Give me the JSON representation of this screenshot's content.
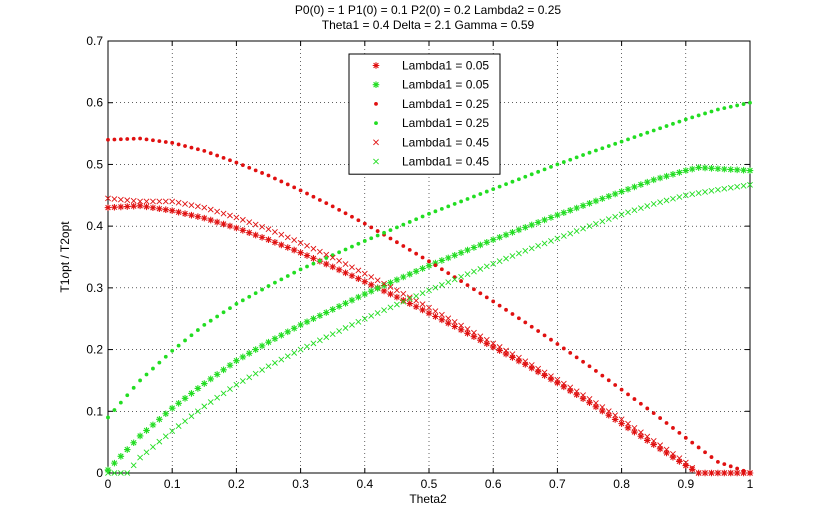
{
  "chart_data": {
    "type": "scatter",
    "title_lines": [
      "P0(0) = 1 P1(0) = 0.1 P2(0) = 0.2 Lambda2 = 0.25",
      "Theta1 = 0.4 Delta = 2.1 Gamma = 0.59"
    ],
    "xlabel": "Theta2",
    "ylabel": "T1opt / T2opt",
    "xlim": [
      0,
      1
    ],
    "ylim": [
      0,
      0.7
    ],
    "xticks": [
      0,
      0.1,
      0.2,
      0.3,
      0.4,
      0.5,
      0.6,
      0.7,
      0.8,
      0.9,
      1
    ],
    "xtick_labels": [
      "0",
      "0.1",
      "0.2",
      "0.3",
      "0.4",
      "0.5",
      "0.6",
      "0.7",
      "0.8",
      "0.9",
      "1"
    ],
    "yticks": [
      0,
      0.1,
      0.2,
      0.3,
      0.4,
      0.5,
      0.6,
      0.7
    ],
    "ytick_labels": [
      "0",
      "0.1",
      "0.2",
      "0.3",
      "0.4",
      "0.5",
      "0.6",
      "0.7"
    ],
    "grid": true,
    "legend_position": "top-center",
    "colors": {
      "red": "#e01010",
      "green": "#22dd22",
      "axis": "#000000",
      "grid": "#000000"
    },
    "series": [
      {
        "name": "Lambda1 = 0.05",
        "color": "#e01010",
        "marker": "asterisk",
        "x": [
          0,
          0.05,
          0.1,
          0.15,
          0.2,
          0.25,
          0.3,
          0.35,
          0.4,
          0.45,
          0.5,
          0.55,
          0.6,
          0.65,
          0.7,
          0.75,
          0.8,
          0.85,
          0.9,
          0.92,
          0.95,
          1
        ],
        "y": [
          0.43,
          0.433,
          0.425,
          0.413,
          0.397,
          0.378,
          0.357,
          0.334,
          0.31,
          0.285,
          0.259,
          0.232,
          0.204,
          0.176,
          0.146,
          0.114,
          0.08,
          0.046,
          0.012,
          0,
          0,
          0
        ]
      },
      {
        "name": "Lambda1 = 0.05",
        "color": "#22dd22",
        "marker": "asterisk",
        "x": [
          0,
          0.05,
          0.1,
          0.15,
          0.2,
          0.25,
          0.3,
          0.35,
          0.4,
          0.45,
          0.5,
          0.55,
          0.6,
          0.65,
          0.7,
          0.75,
          0.8,
          0.85,
          0.9,
          0.92,
          0.95,
          1
        ],
        "y": [
          0.005,
          0.06,
          0.105,
          0.145,
          0.182,
          0.212,
          0.24,
          0.265,
          0.29,
          0.313,
          0.336,
          0.357,
          0.378,
          0.398,
          0.418,
          0.437,
          0.456,
          0.475,
          0.49,
          0.495,
          0.493,
          0.49
        ]
      },
      {
        "name": "Lambda1 = 0.25",
        "color": "#e01010",
        "marker": "dot",
        "x": [
          0,
          0.05,
          0.1,
          0.15,
          0.2,
          0.25,
          0.3,
          0.35,
          0.4,
          0.45,
          0.5,
          0.55,
          0.6,
          0.65,
          0.7,
          0.75,
          0.8,
          0.85,
          0.9,
          0.95,
          1
        ],
        "y": [
          0.54,
          0.542,
          0.535,
          0.522,
          0.503,
          0.482,
          0.458,
          0.432,
          0.404,
          0.374,
          0.343,
          0.311,
          0.278,
          0.244,
          0.209,
          0.173,
          0.135,
          0.097,
          0.057,
          0.018,
          0.0
        ]
      },
      {
        "name": "Lambda1 = 0.25",
        "color": "#22dd22",
        "marker": "dot",
        "x": [
          0,
          0.05,
          0.1,
          0.15,
          0.2,
          0.25,
          0.3,
          0.35,
          0.4,
          0.45,
          0.5,
          0.55,
          0.6,
          0.65,
          0.7,
          0.75,
          0.8,
          0.85,
          0.9,
          0.95,
          1
        ],
        "y": [
          0.09,
          0.15,
          0.198,
          0.24,
          0.274,
          0.303,
          0.33,
          0.353,
          0.376,
          0.398,
          0.42,
          0.44,
          0.46,
          0.48,
          0.5,
          0.519,
          0.537,
          0.555,
          0.573,
          0.589,
          0.6
        ]
      },
      {
        "name": "Lambda1 = 0.45",
        "color": "#e01010",
        "marker": "x",
        "x": [
          0,
          0.05,
          0.1,
          0.15,
          0.2,
          0.25,
          0.3,
          0.35,
          0.4,
          0.45,
          0.5,
          0.55,
          0.6,
          0.65,
          0.7,
          0.75,
          0.8,
          0.85,
          0.9,
          0.92,
          0.95,
          1
        ],
        "y": [
          0.445,
          0.44,
          0.44,
          0.43,
          0.414,
          0.395,
          0.373,
          0.349,
          0.323,
          0.296,
          0.268,
          0.239,
          0.21,
          0.181,
          0.151,
          0.12,
          0.087,
          0.052,
          0.017,
          0,
          0,
          0
        ]
      },
      {
        "name": "Lambda1 = 0.45",
        "color": "#22dd22",
        "marker": "x",
        "x": [
          0,
          0.03,
          0.05,
          0.1,
          0.15,
          0.2,
          0.25,
          0.3,
          0.35,
          0.4,
          0.45,
          0.5,
          0.55,
          0.6,
          0.65,
          0.7,
          0.75,
          0.8,
          0.85,
          0.9,
          0.95,
          1
        ],
        "y": [
          0,
          0,
          0.025,
          0.068,
          0.108,
          0.143,
          0.173,
          0.2,
          0.225,
          0.25,
          0.273,
          0.296,
          0.318,
          0.339,
          0.36,
          0.38,
          0.4,
          0.419,
          0.436,
          0.45,
          0.459,
          0.467
        ]
      }
    ]
  }
}
